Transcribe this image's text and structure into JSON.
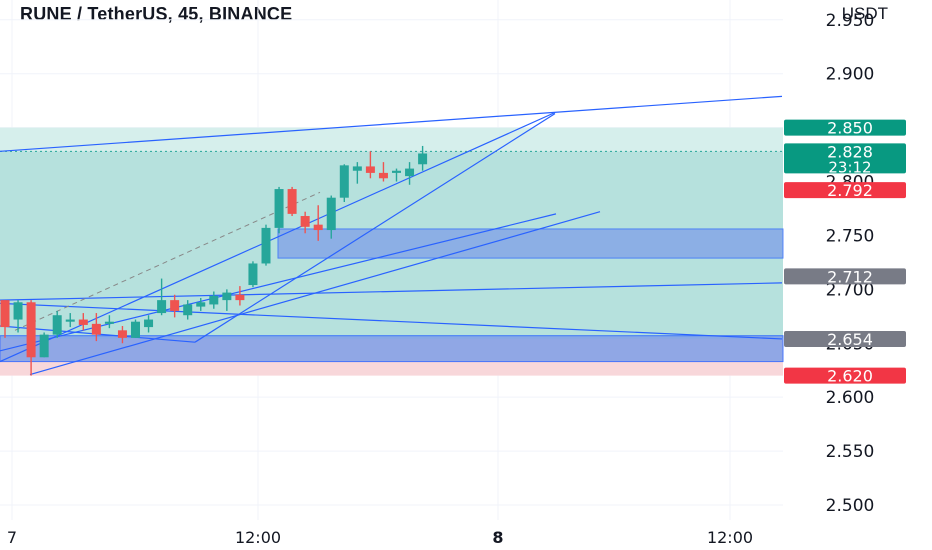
{
  "header": {
    "title": "RUNE / TetherUS, 45, BINANCE",
    "currency": "USDT"
  },
  "colors": {
    "up": "#26a69a",
    "down": "#ef5350",
    "line": "#2962ff",
    "green_zone": "#b2dfdb",
    "red_zone": "#f8d7da",
    "blue_zone": "#7f9fe8",
    "grid": "#f0f3fa",
    "axis_text": "#131722"
  },
  "chart_data": {
    "type": "candlestick",
    "ylim": [
      2.48,
      2.985
    ],
    "y_ticks": [
      "2.950",
      "2.900",
      "2.850",
      "2.800",
      "2.750",
      "2.700",
      "2.650",
      "2.600",
      "2.550",
      "2.500"
    ],
    "x_ticks": [
      "7",
      "12:00",
      "8",
      "12:00"
    ],
    "price_labels": [
      {
        "text": "2.850",
        "value": 2.85,
        "color": "#089981"
      },
      {
        "text": "2.828",
        "sub": "23:12",
        "value": 2.828,
        "color": "#089981"
      },
      {
        "text": "2.792",
        "value": 2.792,
        "color": "#f23645"
      },
      {
        "text": "2.712",
        "value": 2.712,
        "color": "#787b86"
      },
      {
        "text": "2.654",
        "value": 2.654,
        "color": "#787b86"
      },
      {
        "text": "2.620",
        "value": 2.62,
        "color": "#f23645"
      }
    ],
    "candles": [
      {
        "o": 2.69,
        "h": 2.69,
        "l": 2.655,
        "c": 2.665
      },
      {
        "o": 2.672,
        "h": 2.69,
        "l": 2.66,
        "c": 2.688
      },
      {
        "o": 2.688,
        "h": 2.69,
        "l": 2.62,
        "c": 2.637
      },
      {
        "o": 2.637,
        "h": 2.66,
        "l": 2.637,
        "c": 2.658
      },
      {
        "o": 2.658,
        "h": 2.68,
        "l": 2.655,
        "c": 2.676
      },
      {
        "o": 2.67,
        "h": 2.678,
        "l": 2.665,
        "c": 2.672
      },
      {
        "o": 2.672,
        "h": 2.678,
        "l": 2.662,
        "c": 2.667
      },
      {
        "o": 2.668,
        "h": 2.678,
        "l": 2.652,
        "c": 2.658
      },
      {
        "o": 2.668,
        "h": 2.676,
        "l": 2.664,
        "c": 2.67
      },
      {
        "o": 2.662,
        "h": 2.666,
        "l": 2.65,
        "c": 2.655
      },
      {
        "o": 2.655,
        "h": 2.672,
        "l": 2.655,
        "c": 2.67
      },
      {
        "o": 2.665,
        "h": 2.676,
        "l": 2.66,
        "c": 2.672
      },
      {
        "o": 2.678,
        "h": 2.71,
        "l": 2.676,
        "c": 2.69
      },
      {
        "o": 2.69,
        "h": 2.695,
        "l": 2.674,
        "c": 2.68
      },
      {
        "o": 2.676,
        "h": 2.69,
        "l": 2.672,
        "c": 2.686
      },
      {
        "o": 2.684,
        "h": 2.692,
        "l": 2.68,
        "c": 2.688
      },
      {
        "o": 2.686,
        "h": 2.698,
        "l": 2.682,
        "c": 2.694
      },
      {
        "o": 2.69,
        "h": 2.7,
        "l": 2.68,
        "c": 2.697
      },
      {
        "o": 2.695,
        "h": 2.703,
        "l": 2.685,
        "c": 2.69
      },
      {
        "o": 2.704,
        "h": 2.726,
        "l": 2.702,
        "c": 2.724
      },
      {
        "o": 2.724,
        "h": 2.76,
        "l": 2.722,
        "c": 2.757
      },
      {
        "o": 2.757,
        "h": 2.795,
        "l": 2.752,
        "c": 2.793
      },
      {
        "o": 2.793,
        "h": 2.795,
        "l": 2.768,
        "c": 2.77
      },
      {
        "o": 2.768,
        "h": 2.772,
        "l": 2.752,
        "c": 2.758
      },
      {
        "o": 2.76,
        "h": 2.778,
        "l": 2.745,
        "c": 2.755
      },
      {
        "o": 2.755,
        "h": 2.787,
        "l": 2.747,
        "c": 2.785
      },
      {
        "o": 2.785,
        "h": 2.816,
        "l": 2.781,
        "c": 2.815
      },
      {
        "o": 2.81,
        "h": 2.818,
        "l": 2.798,
        "c": 2.814
      },
      {
        "o": 2.814,
        "h": 2.828,
        "l": 2.803,
        "c": 2.808
      },
      {
        "o": 2.808,
        "h": 2.818,
        "l": 2.8,
        "c": 2.803
      },
      {
        "o": 2.808,
        "h": 2.812,
        "l": 2.8,
        "c": 2.81
      },
      {
        "o": 2.805,
        "h": 2.818,
        "l": 2.797,
        "c": 2.812
      },
      {
        "o": 2.816,
        "h": 2.833,
        "l": 2.81,
        "c": 2.826
      }
    ]
  }
}
